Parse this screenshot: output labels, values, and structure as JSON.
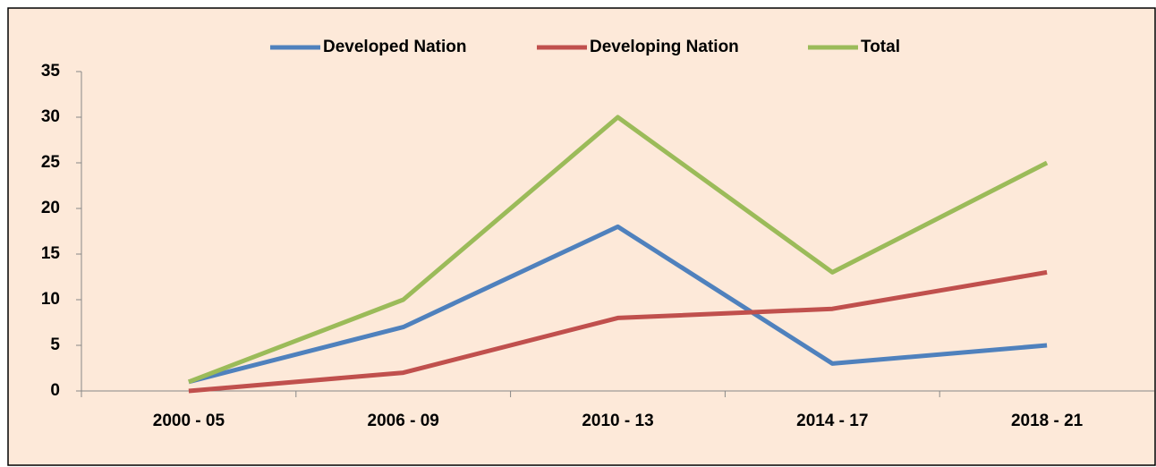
{
  "chart_data": {
    "type": "line",
    "categories": [
      "2000 - 05",
      "2006 - 09",
      "2010 - 13",
      "2014 - 17",
      "2018 - 21"
    ],
    "series": [
      {
        "name": "Developed Nation",
        "color": "#4f81bd",
        "values": [
          1,
          7,
          18,
          3,
          5
        ]
      },
      {
        "name": "Developing Nation",
        "color": "#c0504d",
        "values": [
          0,
          2,
          8,
          9,
          13
        ]
      },
      {
        "name": "Total",
        "color": "#9bbb59",
        "values": [
          1,
          10,
          30,
          13,
          25
        ]
      }
    ],
    "ylim": [
      0,
      35
    ],
    "yticks": [
      0,
      5,
      10,
      15,
      20,
      25,
      30,
      35
    ],
    "grid": false,
    "legend": "top"
  }
}
